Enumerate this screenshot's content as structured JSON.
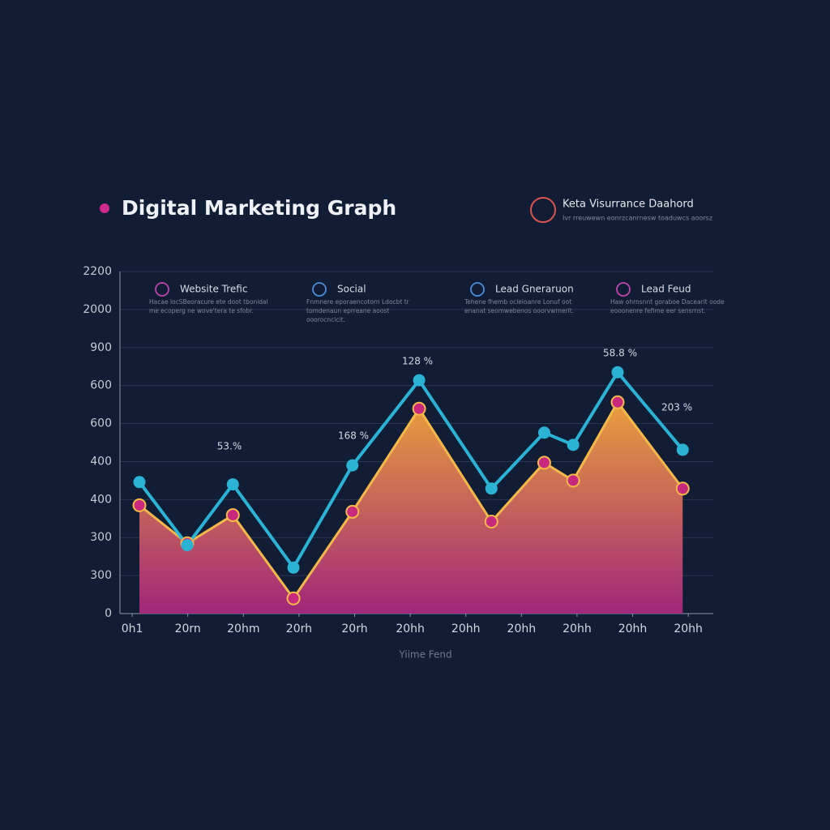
{
  "chart_data": {
    "type": "line",
    "title": "Digital Marketing Graph",
    "brand": "Keta Visurrance Daahord",
    "brand_subtitle": "Ivr rreuwewn eonrzcanrnesw toaduwcs aoorsz",
    "x_label": "Yiime Fend",
    "xlim": [
      -0.22,
      10.45
    ],
    "xticks": [
      {
        "value": 0,
        "label": "0h1"
      },
      {
        "value": 1,
        "label": "20rn"
      },
      {
        "value": 2,
        "label": "20hm"
      },
      {
        "value": 3,
        "label": "20rh"
      },
      {
        "value": 4,
        "label": "20rh"
      },
      {
        "value": 5,
        "label": "20hh"
      },
      {
        "value": 6,
        "label": "20hh"
      },
      {
        "value": 7,
        "label": "20hh"
      },
      {
        "value": 8,
        "label": "20hh"
      },
      {
        "value": 9,
        "label": "20hh"
      },
      {
        "value": 10,
        "label": "20hh"
      }
    ],
    "ylim": [
      0,
      9
    ],
    "yticks": [
      {
        "value": 0,
        "label": "0"
      },
      {
        "value": 1,
        "label": "300"
      },
      {
        "value": 2,
        "label": "300"
      },
      {
        "value": 3,
        "label": "400"
      },
      {
        "value": 4,
        "label": "400"
      },
      {
        "value": 5,
        "label": "600"
      },
      {
        "value": 6,
        "label": "600"
      },
      {
        "value": 7,
        "label": "900"
      },
      {
        "value": 8,
        "label": "2000"
      },
      {
        "value": 9,
        "label": "2200"
      }
    ],
    "grid": true,
    "series": [
      {
        "name": "Website Trefic",
        "color": "#f5b94a",
        "marker_color": "#c8287e",
        "area": true,
        "x": [
          0.13,
          0.99,
          1.81,
          2.9,
          3.96,
          5.16,
          6.46,
          7.41,
          7.93,
          8.73,
          9.9
        ],
        "values": [
          2.85,
          1.85,
          2.59,
          0.4,
          2.68,
          5.39,
          2.42,
          3.97,
          3.5,
          5.56,
          3.29
        ]
      },
      {
        "name": "Social",
        "color": "#2bb3d6",
        "marker_color": "#2bb3d6",
        "area": false,
        "x": [
          0.13,
          0.99,
          1.81,
          2.9,
          3.96,
          5.16,
          6.46,
          7.41,
          7.93,
          8.73,
          9.9
        ],
        "values": [
          3.46,
          1.8,
          3.4,
          1.21,
          3.9,
          6.14,
          3.29,
          4.76,
          4.44,
          6.35,
          4.31
        ]
      }
    ],
    "annotations": [
      "53.%",
      "168 %",
      "128 %",
      "58.8 %",
      "203 %"
    ],
    "legend_cards": [
      {
        "title": "Website Trefic",
        "text": "Hacae locSBeoracure ete doot tbonidal me ecoperg ne wove'tera te sfobr."
      },
      {
        "title": "Social",
        "text": "Fnmnere eporaencotorn Ldocbt tr tomdenaun eprreane aoost ooorocncicit."
      },
      {
        "title": "Lead Gneraruon",
        "text": "Tehene fhemb ocleioanre Lonuf oot enanat seomwebenos ooorvwrnerit."
      },
      {
        "title": "Lead Feud",
        "text": "Haw ohrnsnnt goraboe Dacearit oode eooonenre fefime eer sensrnst."
      }
    ]
  }
}
